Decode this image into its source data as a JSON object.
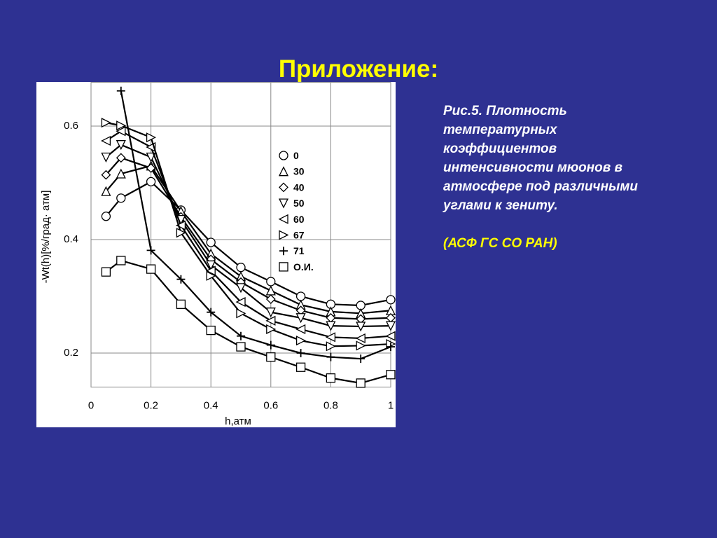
{
  "header": {
    "title": "Приложение:"
  },
  "caption": {
    "lines": [
      "Рис.5. Плотность",
      "температурных",
      "коэффициентов",
      "интенсивности мюонов в",
      "атмосфере под различными",
      "углами к зениту."
    ],
    "note": "(АСФ ГС СО РАН)"
  },
  "chart_data": {
    "type": "line",
    "x_label": "h,атм",
    "y_label": "-Wt(h)[%/град· атм]",
    "x": [
      0.05,
      0.1,
      0.2,
      0.3,
      0.4,
      0.5,
      0.6,
      0.7,
      0.8,
      0.9,
      1.0
    ],
    "xlim": [
      0,
      1
    ],
    "xticks": [
      0,
      0.2,
      0.4,
      0.6,
      0.8,
      1
    ],
    "ylim": [
      0.14,
      0.677
    ],
    "yticks": [
      0.2,
      0.4,
      0.6
    ],
    "grid": true,
    "series": [
      {
        "name": "0",
        "color": "#000000",
        "marker": "circle",
        "values": [
          0.441,
          0.473,
          0.502,
          0.452,
          0.395,
          0.351,
          0.326,
          0.3,
          0.286,
          0.284,
          0.294
        ]
      },
      {
        "name": "30",
        "color": "#000000",
        "marker": "triangle-up",
        "values": [
          0.485,
          0.516,
          0.53,
          0.45,
          0.375,
          0.335,
          0.31,
          0.285,
          0.273,
          0.27,
          0.275
        ]
      },
      {
        "name": "40",
        "color": "#000000",
        "marker": "diamond",
        "values": [
          0.514,
          0.544,
          0.526,
          0.44,
          0.365,
          0.325,
          0.295,
          0.275,
          0.262,
          0.26,
          0.262
        ]
      },
      {
        "name": "50",
        "color": "#000000",
        "marker": "triangle-down",
        "values": [
          0.545,
          0.567,
          0.545,
          0.435,
          0.355,
          0.315,
          0.272,
          0.262,
          0.248,
          0.247,
          0.248
        ]
      },
      {
        "name": "60",
        "color": "#000000",
        "marker": "triangle-left",
        "values": [
          0.574,
          0.591,
          0.563,
          0.425,
          0.345,
          0.29,
          0.257,
          0.242,
          0.228,
          0.226,
          0.23
        ]
      },
      {
        "name": "67",
        "color": "#000000",
        "marker": "triangle-right",
        "values": [
          0.606,
          0.601,
          0.58,
          0.412,
          0.336,
          0.27,
          0.242,
          0.222,
          0.212,
          0.213,
          0.216
        ]
      },
      {
        "name": "71",
        "color": "#000000",
        "marker": "plus",
        "values": [
          null,
          0.662,
          0.381,
          0.33,
          0.272,
          0.23,
          0.214,
          0.2,
          0.193,
          0.19,
          0.211
        ]
      },
      {
        "name": "О.И.",
        "color": "#000000",
        "marker": "square",
        "values": [
          0.343,
          0.363,
          0.348,
          0.286,
          0.24,
          0.211,
          0.193,
          0.175,
          0.156,
          0.147,
          0.162
        ]
      }
    ]
  }
}
